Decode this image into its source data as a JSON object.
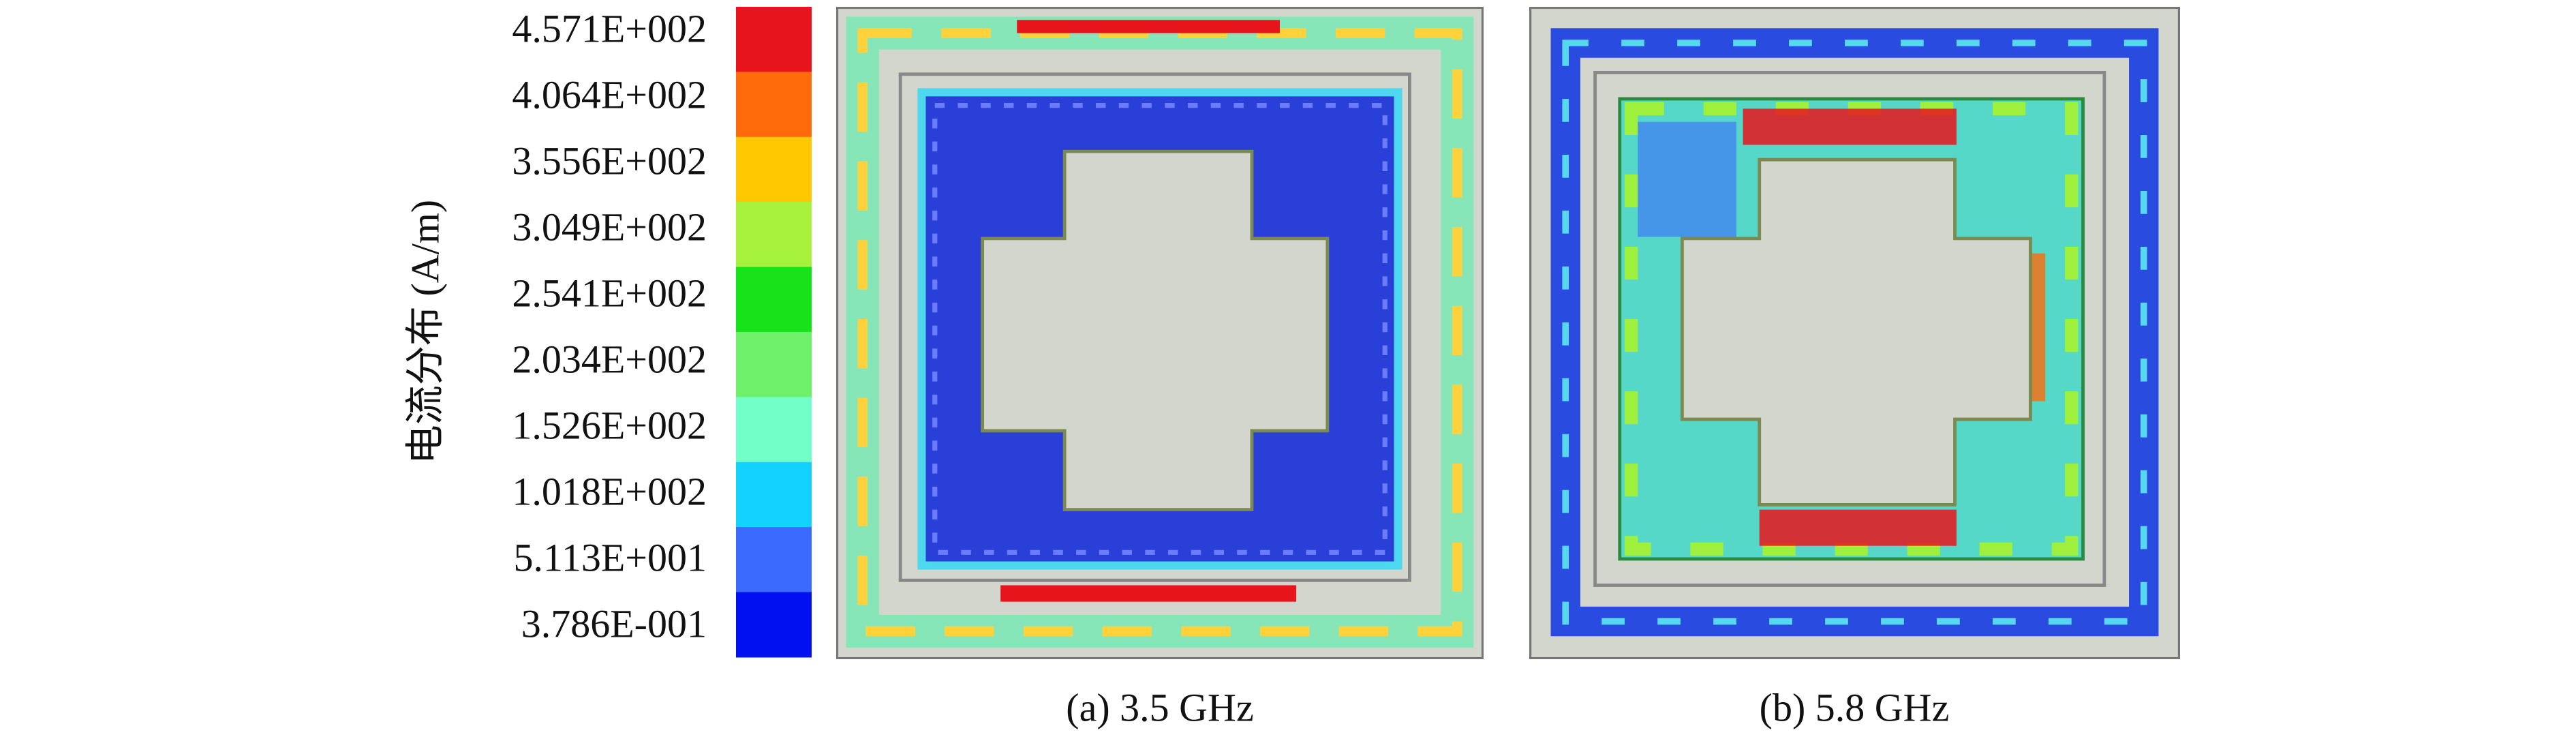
{
  "legend": {
    "title": "电流分布 (A/m)",
    "entries": [
      {
        "label": "4.571E+002",
        "color": "#e8141c"
      },
      {
        "label": "4.064E+002",
        "color": "#ff6a0a"
      },
      {
        "label": "3.556E+002",
        "color": "#ffc800"
      },
      {
        "label": "3.049E+002",
        "color": "#a6f23c"
      },
      {
        "label": "2.541E+002",
        "color": "#18e21a"
      },
      {
        "label": "2.034E+002",
        "color": "#6ef06a"
      },
      {
        "label": "1.526E+002",
        "color": "#72ffc8"
      },
      {
        "label": "1.018E+002",
        "color": "#14d2ff"
      },
      {
        "label": "5.113E+001",
        "color": "#3a6aff"
      },
      {
        "label": "3.786E-001",
        "color": "#0010f0"
      }
    ]
  },
  "panels": [
    {
      "caption": "(a) 3.5 GHz"
    },
    {
      "caption": "(b) 5.8 GHz"
    }
  ]
}
